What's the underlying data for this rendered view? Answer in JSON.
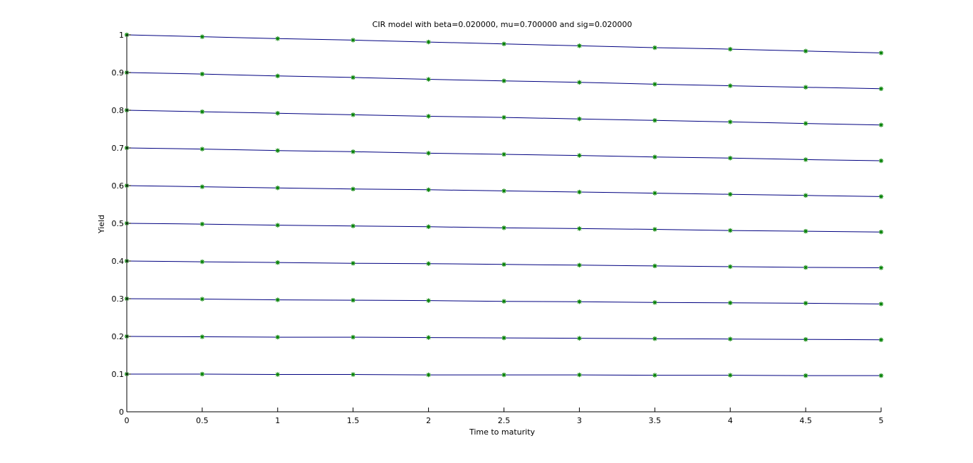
{
  "chart_data": {
    "type": "line",
    "title": "CIR model with beta=0.020000, mu=0.700000 and sig=0.020000",
    "xlabel": "Time to maturity",
    "ylabel": "Yield",
    "xlim": [
      0,
      5
    ],
    "ylim": [
      0,
      1
    ],
    "xticks": [
      "0",
      "0.5",
      "1",
      "1.5",
      "2",
      "2.5",
      "3",
      "3.5",
      "4",
      "4.5",
      "5"
    ],
    "yticks": [
      "0",
      "0.1",
      "0.2",
      "0.3",
      "0.4",
      "0.5",
      "0.6",
      "0.7",
      "0.8",
      "0.9",
      "1"
    ],
    "grid": false,
    "line_color": "#000080",
    "marker_color": "#008000",
    "marker": "asterisk",
    "x": [
      0,
      0.5,
      1,
      1.5,
      2,
      2.5,
      3,
      3.5,
      4,
      4.5,
      5
    ],
    "series": [
      {
        "values": [
          1.0,
          0.995,
          0.99,
          0.986,
          0.981,
          0.976,
          0.971,
          0.966,
          0.962,
          0.957,
          0.952
        ]
      },
      {
        "values": [
          0.9,
          0.896,
          0.891,
          0.887,
          0.882,
          0.878,
          0.874,
          0.869,
          0.865,
          0.861,
          0.857
        ]
      },
      {
        "values": [
          0.8,
          0.796,
          0.792,
          0.788,
          0.784,
          0.781,
          0.777,
          0.773,
          0.769,
          0.765,
          0.761
        ]
      },
      {
        "values": [
          0.7,
          0.697,
          0.693,
          0.69,
          0.686,
          0.683,
          0.68,
          0.676,
          0.673,
          0.669,
          0.666
        ]
      },
      {
        "values": [
          0.6,
          0.597,
          0.594,
          0.591,
          0.589,
          0.586,
          0.583,
          0.58,
          0.577,
          0.574,
          0.571
        ]
      },
      {
        "values": [
          0.5,
          0.498,
          0.495,
          0.493,
          0.491,
          0.488,
          0.486,
          0.484,
          0.481,
          0.479,
          0.477
        ]
      },
      {
        "values": [
          0.4,
          0.398,
          0.396,
          0.394,
          0.393,
          0.391,
          0.389,
          0.387,
          0.385,
          0.383,
          0.382
        ]
      },
      {
        "values": [
          0.3,
          0.299,
          0.297,
          0.296,
          0.295,
          0.293,
          0.292,
          0.29,
          0.289,
          0.288,
          0.286
        ]
      },
      {
        "values": [
          0.2,
          0.199,
          0.198,
          0.198,
          0.197,
          0.196,
          0.195,
          0.194,
          0.193,
          0.192,
          0.191
        ]
      },
      {
        "values": [
          0.1,
          0.1,
          0.099,
          0.099,
          0.098,
          0.098,
          0.098,
          0.097,
          0.097,
          0.096,
          0.096
        ]
      }
    ]
  }
}
